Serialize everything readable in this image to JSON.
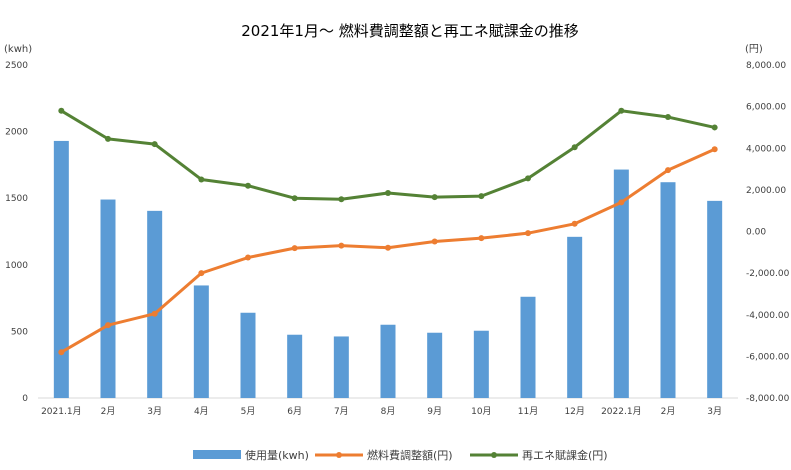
{
  "chart_data": {
    "type": "bar+line",
    "title": "2021年1月～ 燃料費調整額と再エネ賦課金の推移",
    "y_left_label": "(kwh)",
    "y_right_label": "(円)",
    "categories": [
      "2021.1月",
      "2月",
      "3月",
      "4月",
      "5月",
      "6月",
      "7月",
      "8月",
      "9月",
      "10月",
      "11月",
      "12月",
      "2022.1月",
      "2月",
      "3月"
    ],
    "y_left_ticks": [
      "2500",
      "2000",
      "1500",
      "1000",
      "500",
      "0"
    ],
    "y_right_ticks": [
      "8,000.00",
      "6,000.00",
      "4,000.00",
      "2,000.00",
      "0.00",
      "-2,000.00",
      "-4,000.00",
      "-6,000.00",
      "-8,000.00"
    ],
    "ylim_left": [
      0,
      2500
    ],
    "ylim_right": [
      -8000,
      8000
    ],
    "grid": false,
    "legend_position": "bottom",
    "series": [
      {
        "name": "使用量(kwh)",
        "type": "bar",
        "axis": "left",
        "color": "#5B9BD5",
        "values": [
          1930,
          1490,
          1405,
          845,
          640,
          475,
          462,
          550,
          490,
          505,
          760,
          1210,
          1715,
          1620,
          1480
        ]
      },
      {
        "name": "燃料費調整額(円)",
        "type": "line",
        "axis": "right",
        "color": "#ED7D31",
        "values": [
          -5800,
          -4500,
          -3950,
          -2000,
          -1250,
          -800,
          -680,
          -780,
          -480,
          -320,
          -80,
          370,
          1400,
          2950,
          3950
        ]
      },
      {
        "name": "再エネ賦課金(円)",
        "type": "line",
        "axis": "right",
        "color": "#548235",
        "values": [
          5800,
          4450,
          4200,
          2500,
          2200,
          1600,
          1550,
          1850,
          1650,
          1700,
          2550,
          4050,
          5800,
          5500,
          5000
        ]
      }
    ]
  }
}
